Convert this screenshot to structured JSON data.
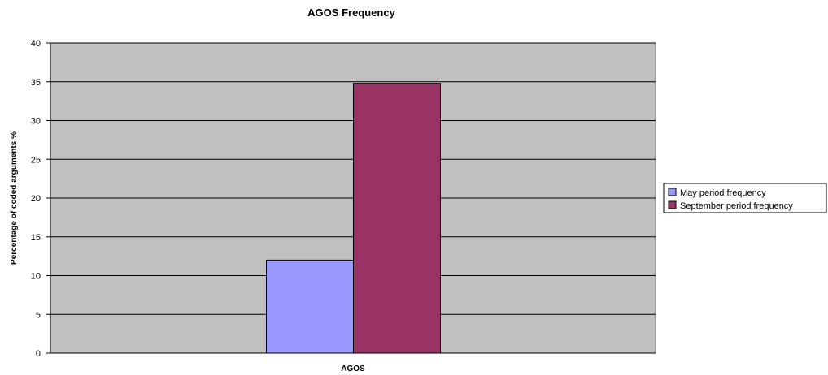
{
  "chart_data": {
    "type": "bar",
    "title": "AGOS Frequency",
    "xlabel": "",
    "ylabel": "Percentage of coded arguments %",
    "categories": [
      "AGOS"
    ],
    "series": [
      {
        "name": "May period frequency",
        "values": [
          12
        ],
        "color": "#9999ff"
      },
      {
        "name": "September period frequency",
        "values": [
          34.8
        ],
        "color": "#993366"
      }
    ],
    "ylim": [
      0,
      40
    ],
    "yticks": [
      0,
      5,
      10,
      15,
      20,
      25,
      30,
      35,
      40
    ],
    "grid": true,
    "legend_position": "right",
    "plot_background": "#c0c0c0"
  }
}
